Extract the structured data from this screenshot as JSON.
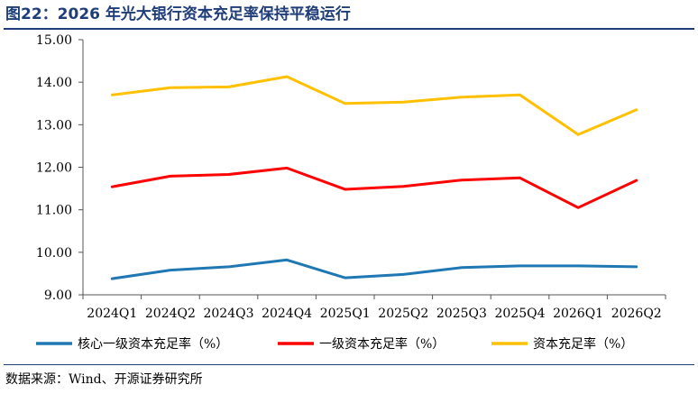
{
  "title": "图22：2026 年光大银行资本充足率保持平稳运行",
  "source": "数据来源：Wind、开源证券研究所",
  "chart_data": {
    "type": "line",
    "title": "图22：2026 年光大银行资本充足率保持平稳运行",
    "xlabel": "",
    "ylabel": "",
    "categories": [
      "2024Q1",
      "2024Q2",
      "2024Q3",
      "2024Q4",
      "2025Q1",
      "2025Q2",
      "2025Q3",
      "2025Q4",
      "2026Q1",
      "2026Q2"
    ],
    "ylim": [
      9,
      15
    ],
    "yticks": [
      "9.00",
      "10.00",
      "11.00",
      "12.00",
      "13.00",
      "14.00",
      "15.00"
    ],
    "grid": false,
    "legend_position": "bottom",
    "series": [
      {
        "name": "核心一级资本充足率（%）",
        "color": "#1f77b4",
        "values": [
          9.38,
          9.58,
          9.66,
          9.82,
          9.4,
          9.48,
          9.64,
          9.68,
          9.68,
          9.66
        ]
      },
      {
        "name": "一级资本充足率（%）",
        "color": "#ff0000",
        "values": [
          11.54,
          11.79,
          11.83,
          11.98,
          11.48,
          11.55,
          11.7,
          11.75,
          11.05,
          11.69
        ]
      },
      {
        "name": "资本充足率（%）",
        "color": "#ffc000",
        "values": [
          13.7,
          13.87,
          13.89,
          14.13,
          13.5,
          13.53,
          13.65,
          13.7,
          12.77,
          13.35
        ]
      }
    ]
  }
}
